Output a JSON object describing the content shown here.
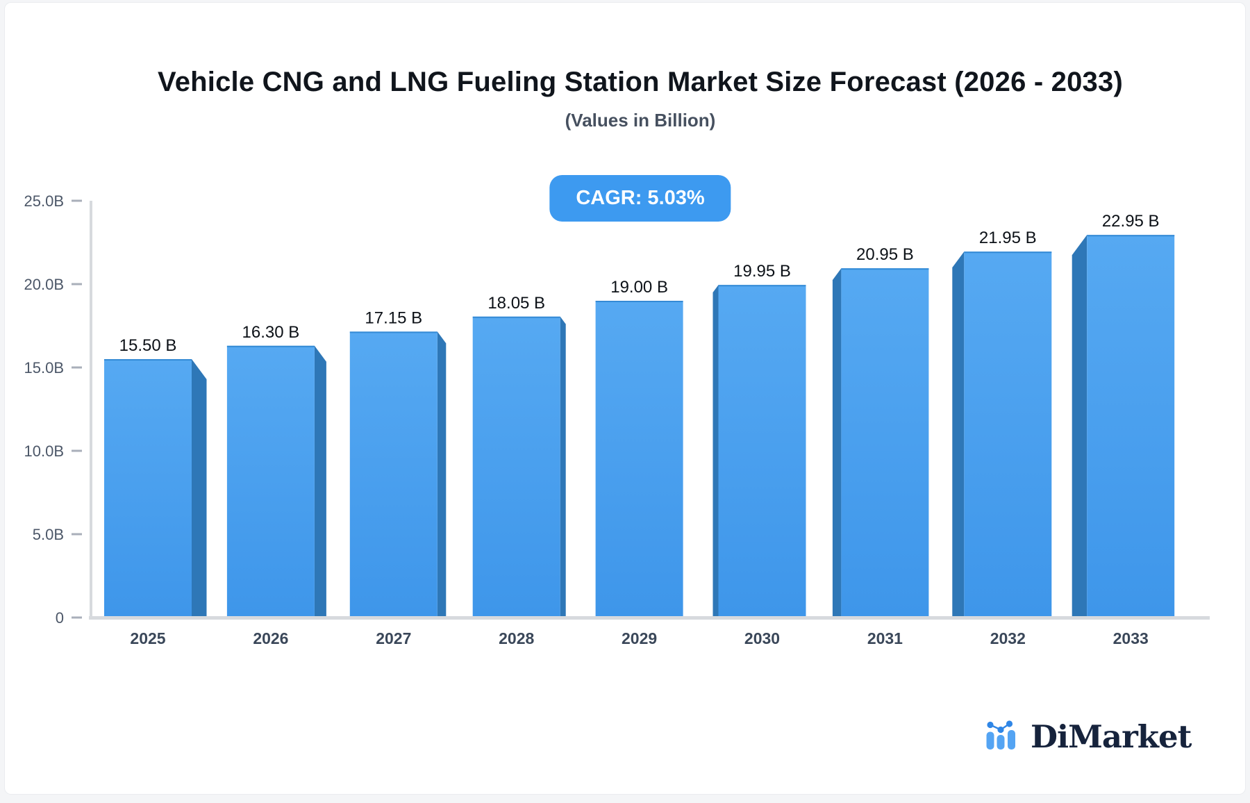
{
  "page": {
    "background": "#f4f5f7",
    "card_background": "#ffffff",
    "card_border": "#eaecef"
  },
  "chart_data": {
    "type": "bar",
    "title": "Vehicle CNG and LNG Fueling Station Market Size Forecast (2026 - 2033)",
    "subtitle": "(Values in Billion)",
    "cagr_badge": "CAGR: 5.03%",
    "categories": [
      "2025",
      "2026",
      "2027",
      "2028",
      "2029",
      "2030",
      "2031",
      "2032",
      "2033"
    ],
    "values": [
      15.5,
      16.3,
      17.15,
      18.05,
      19.0,
      19.95,
      20.95,
      21.95,
      22.95
    ],
    "value_labels": [
      "15.50 B",
      "16.30 B",
      "17.15 B",
      "18.05 B",
      "19.00 B",
      "19.95 B",
      "20.95 B",
      "21.95 B",
      "22.95 B"
    ],
    "xlabel": "",
    "ylabel": "",
    "ylim": [
      0,
      25
    ],
    "grid": false,
    "legend": null,
    "y_ticks": [
      {
        "value": 25,
        "label": "25.0B"
      },
      {
        "value": 20,
        "label": "20.0B"
      },
      {
        "value": 15,
        "label": "15.0B"
      },
      {
        "value": 10,
        "label": "10.0B"
      },
      {
        "value": 5,
        "label": "5.0B"
      },
      {
        "value": 0,
        "label": "0"
      }
    ],
    "colors": {
      "bar_face_top": "#56a9f2",
      "bar_face_bottom": "#3e96ea",
      "bar_side": "#2e77b7",
      "bar_top_edge": "#2f85d1",
      "badge_background": "#3d9af0",
      "badge_text": "#ffffff",
      "axis_line": "#d7dade",
      "tick_dash": "#a9afba",
      "tick_label": "#4c5768",
      "category_label": "#3a4759",
      "value_label": "#0c1117",
      "title": "#10151c",
      "subtitle": "#46505f"
    }
  },
  "logo": {
    "text": "DiMarket",
    "colors": {
      "text": "#16233c",
      "bars": "#54a4f3",
      "dots": "#2f86e6"
    }
  }
}
